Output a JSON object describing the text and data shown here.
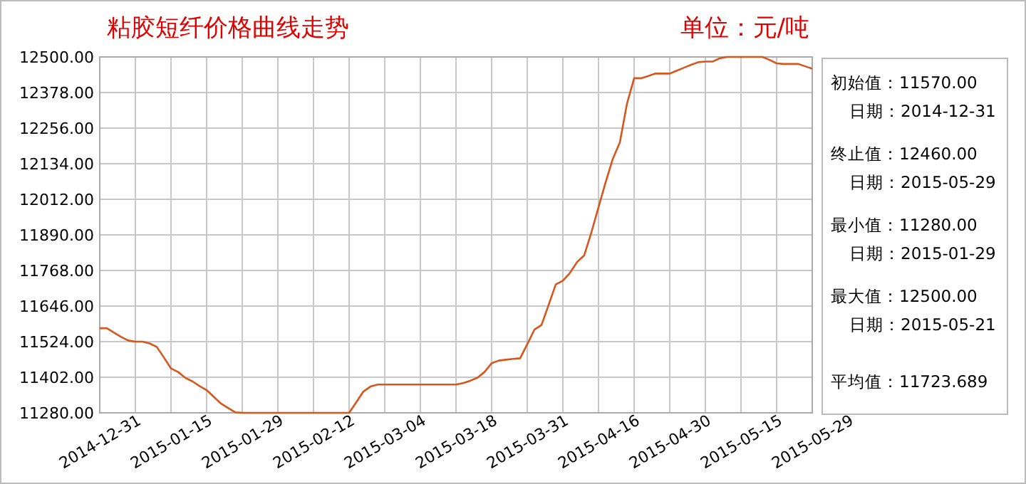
{
  "chart_data": {
    "type": "line",
    "title": "粘胶短纤价格曲线走势",
    "categories": [
      "2014-12-31",
      null,
      null,
      null,
      null,
      null,
      null,
      null,
      null,
      null,
      "2015-01-15",
      null,
      null,
      null,
      null,
      null,
      null,
      null,
      null,
      null,
      "2015-01-29",
      null,
      null,
      null,
      null,
      null,
      null,
      null,
      null,
      null,
      "2015-02-12",
      null,
      null,
      null,
      null,
      null,
      null,
      null,
      null,
      null,
      "2015-03-04",
      null,
      null,
      null,
      null,
      null,
      null,
      null,
      null,
      null,
      "2015-03-18",
      null,
      null,
      null,
      null,
      null,
      null,
      null,
      null,
      null,
      "2015-03-31",
      null,
      null,
      null,
      null,
      null,
      null,
      null,
      null,
      null,
      "2015-04-16",
      null,
      null,
      null,
      null,
      null,
      null,
      null,
      null,
      null,
      "2015-04-30",
      null,
      null,
      null,
      null,
      null,
      null,
      null,
      null,
      null,
      "2015-05-15",
      null,
      null,
      null,
      null,
      null,
      null,
      null,
      null,
      null,
      "2015-05-29"
    ],
    "series": [
      {
        "color": "#d4581e",
        "values": [
          11570,
          11570,
          11555,
          11540,
          11528,
          11524,
          11524,
          11518,
          11506,
          11470,
          11432,
          11420,
          11400,
          11388,
          11372,
          11358,
          11335,
          11312,
          11297,
          11282,
          11280,
          11280,
          11280,
          11280,
          11280,
          11280,
          11280,
          11280,
          11280,
          11280,
          11280,
          11280,
          11280,
          11280,
          11280,
          11280,
          11316,
          11353,
          11370,
          11377,
          11377,
          11377,
          11377,
          11377,
          11377,
          11377,
          11377,
          11377,
          11377,
          11377,
          11377,
          11382,
          11390,
          11400,
          11420,
          11450,
          11459,
          11462,
          11465,
          11467,
          11515,
          11565,
          11581,
          11650,
          11720,
          11733,
          11760,
          11797,
          11820,
          11898,
          11985,
          12070,
          12150,
          12207,
          12340,
          12427,
          12427,
          12435,
          12443,
          12443,
          12443,
          12453,
          12463,
          12473,
          12482,
          12484,
          12484,
          12495,
          12500,
          12500,
          12500,
          12500,
          12500,
          12500,
          12490,
          12478,
          12476,
          12476,
          12476,
          12468,
          12460
        ]
      }
    ],
    "ylim": [
      11280,
      12500
    ],
    "yticks": [
      {
        "value": 11280,
        "label": "11280.00"
      },
      {
        "value": 11402,
        "label": "11402.00"
      },
      {
        "value": 11524,
        "label": "11524.00"
      },
      {
        "value": 11646,
        "label": "11646.00"
      },
      {
        "value": 11768,
        "label": "11768.00"
      },
      {
        "value": 11890,
        "label": "11890.00"
      },
      {
        "value": 12012,
        "label": "12012.00"
      },
      {
        "value": 12134,
        "label": "12134.00"
      },
      {
        "value": 12256,
        "label": "12256.00"
      },
      {
        "value": 12378,
        "label": "12378.00"
      },
      {
        "value": 12500,
        "label": "12500.00"
      }
    ],
    "grid": true,
    "annotations": [
      "单位：元/吨",
      "初始值：11570.00",
      "日期：2014-12-31",
      "终止值：12460.00",
      "日期：2015-05-29",
      "最小值：11280.00",
      "日期：2015-01-29",
      "最大值：12500.00",
      "日期：2015-05-21",
      "平均值：11723.689"
    ]
  }
}
